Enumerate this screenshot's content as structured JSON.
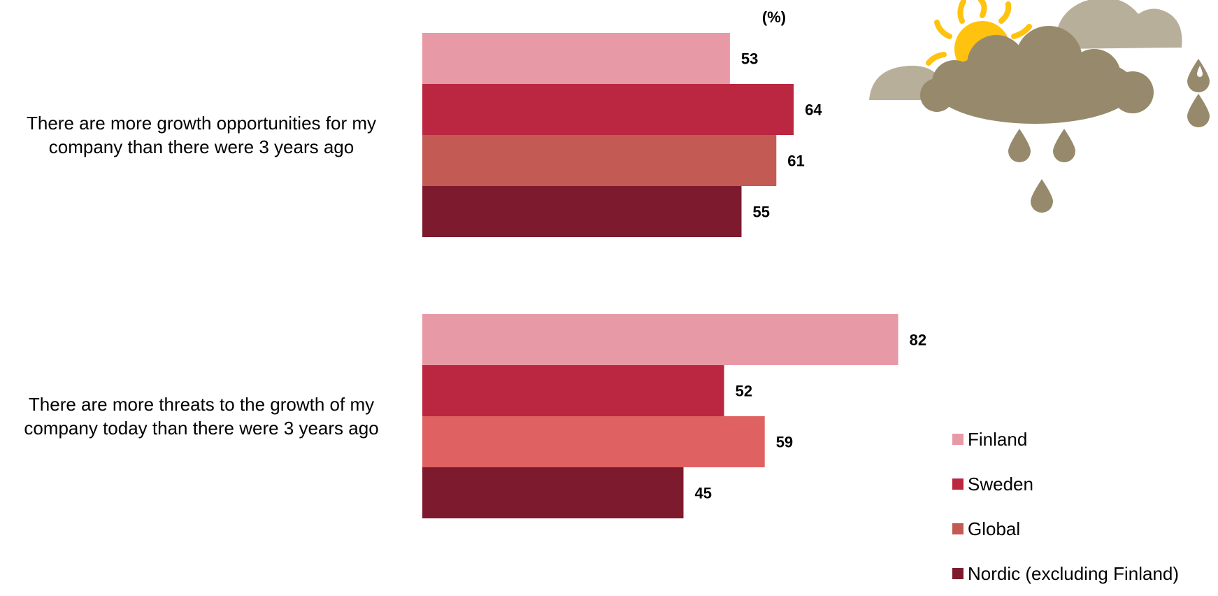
{
  "chart_data": {
    "type": "bar",
    "orientation": "horizontal",
    "unit_label": "(%)",
    "categories": [
      [
        "There are more growth opportunities for my",
        "company than there were 3 years ago"
      ],
      [
        "There are more threats to the growth of my",
        "company today than there were 3 years ago"
      ]
    ],
    "series": [
      {
        "name": "Finland",
        "values": [
          53,
          82
        ]
      },
      {
        "name": "Sweden",
        "values": [
          64,
          52
        ]
      },
      {
        "name": "Global",
        "values": [
          61,
          59
        ]
      },
      {
        "name": "Nordic (excluding Finland)",
        "values": [
          55,
          45
        ]
      }
    ],
    "bar_colors": [
      [
        "#e899a6",
        "#bb2640",
        "#c45a54",
        "#7e1a2d"
      ],
      [
        "#e899a6",
        "#bb2640",
        "#e06161",
        "#7e1a2d"
      ]
    ],
    "legend_colors": [
      "#e899a6",
      "#bb2640",
      "#c45a54",
      "#7e1a2d"
    ],
    "legend_position": "bottom-right",
    "xlim": [
      0,
      100
    ],
    "grid": false
  },
  "decoration": {
    "icon": "sun-cloud-rain-icon",
    "colors": {
      "sun": "#ffc20e",
      "cloud_light": "#b7af99",
      "cloud_dark": "#978a6c"
    }
  }
}
